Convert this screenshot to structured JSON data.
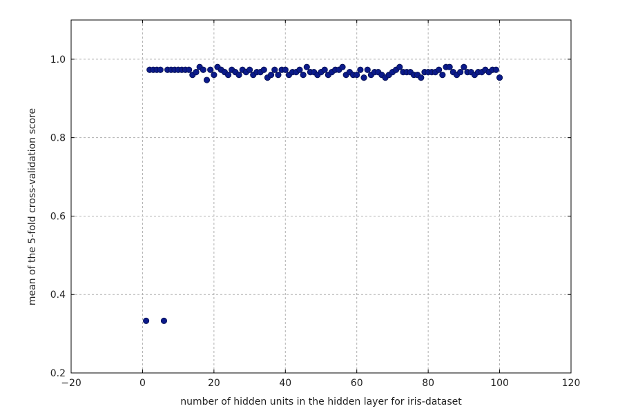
{
  "chart_data": {
    "type": "scatter",
    "title": "",
    "xlabel": "number of hidden units in the hidden layer for iris-dataset",
    "ylabel": "mean of the 5-fold cross-validation score",
    "xlim": [
      -20,
      120
    ],
    "ylim": [
      0.2,
      1.1
    ],
    "xticks": [
      -20,
      0,
      20,
      40,
      60,
      80,
      100,
      120
    ],
    "yticks": [
      0.2,
      0.4,
      0.6,
      0.8,
      1.0
    ],
    "xtick_labels": [
      "−20",
      "0",
      "20",
      "40",
      "60",
      "80",
      "100",
      "120"
    ],
    "ytick_labels": [
      "0.2",
      "0.4",
      "0.6",
      "0.8",
      "1.0"
    ],
    "grid": true,
    "marker_color": "#0b1a8a",
    "series": [
      {
        "x": [
          1,
          2,
          3,
          4,
          5,
          6,
          7,
          8,
          9,
          10,
          11,
          12,
          13,
          14,
          15,
          16,
          17,
          18,
          19,
          20,
          21,
          22,
          23,
          24,
          25,
          26,
          27,
          28,
          29,
          30,
          31,
          32,
          33,
          34,
          35,
          36,
          37,
          38,
          39,
          40,
          41,
          42,
          43,
          44,
          45,
          46,
          47,
          48,
          49,
          50,
          51,
          52,
          53,
          54,
          55,
          56,
          57,
          58,
          59,
          60,
          61,
          62,
          63,
          64,
          65,
          66,
          67,
          68,
          69,
          70,
          71,
          72,
          73,
          74,
          75,
          76,
          77,
          78,
          79,
          80,
          81,
          82,
          83,
          84,
          85,
          86,
          87,
          88,
          89,
          90,
          91,
          92,
          93,
          94,
          95,
          96,
          97,
          98,
          99,
          100
        ],
        "y": [
          0.333,
          0.973,
          0.973,
          0.973,
          0.973,
          0.333,
          0.973,
          0.973,
          0.973,
          0.973,
          0.973,
          0.973,
          0.973,
          0.96,
          0.967,
          0.98,
          0.973,
          0.947,
          0.973,
          0.96,
          0.98,
          0.973,
          0.967,
          0.96,
          0.973,
          0.967,
          0.96,
          0.973,
          0.967,
          0.973,
          0.96,
          0.967,
          0.967,
          0.973,
          0.953,
          0.96,
          0.973,
          0.96,
          0.973,
          0.973,
          0.96,
          0.967,
          0.967,
          0.973,
          0.96,
          0.98,
          0.967,
          0.967,
          0.96,
          0.967,
          0.973,
          0.96,
          0.967,
          0.973,
          0.973,
          0.98,
          0.96,
          0.967,
          0.96,
          0.96,
          0.973,
          0.953,
          0.973,
          0.96,
          0.967,
          0.967,
          0.96,
          0.953,
          0.96,
          0.967,
          0.973,
          0.98,
          0.967,
          0.967,
          0.967,
          0.96,
          0.96,
          0.953,
          0.967,
          0.967,
          0.967,
          0.967,
          0.973,
          0.96,
          0.98,
          0.98,
          0.967,
          0.96,
          0.967,
          0.98,
          0.967,
          0.967,
          0.96,
          0.967,
          0.967,
          0.973,
          0.967,
          0.973,
          0.973,
          0.953
        ]
      }
    ]
  }
}
